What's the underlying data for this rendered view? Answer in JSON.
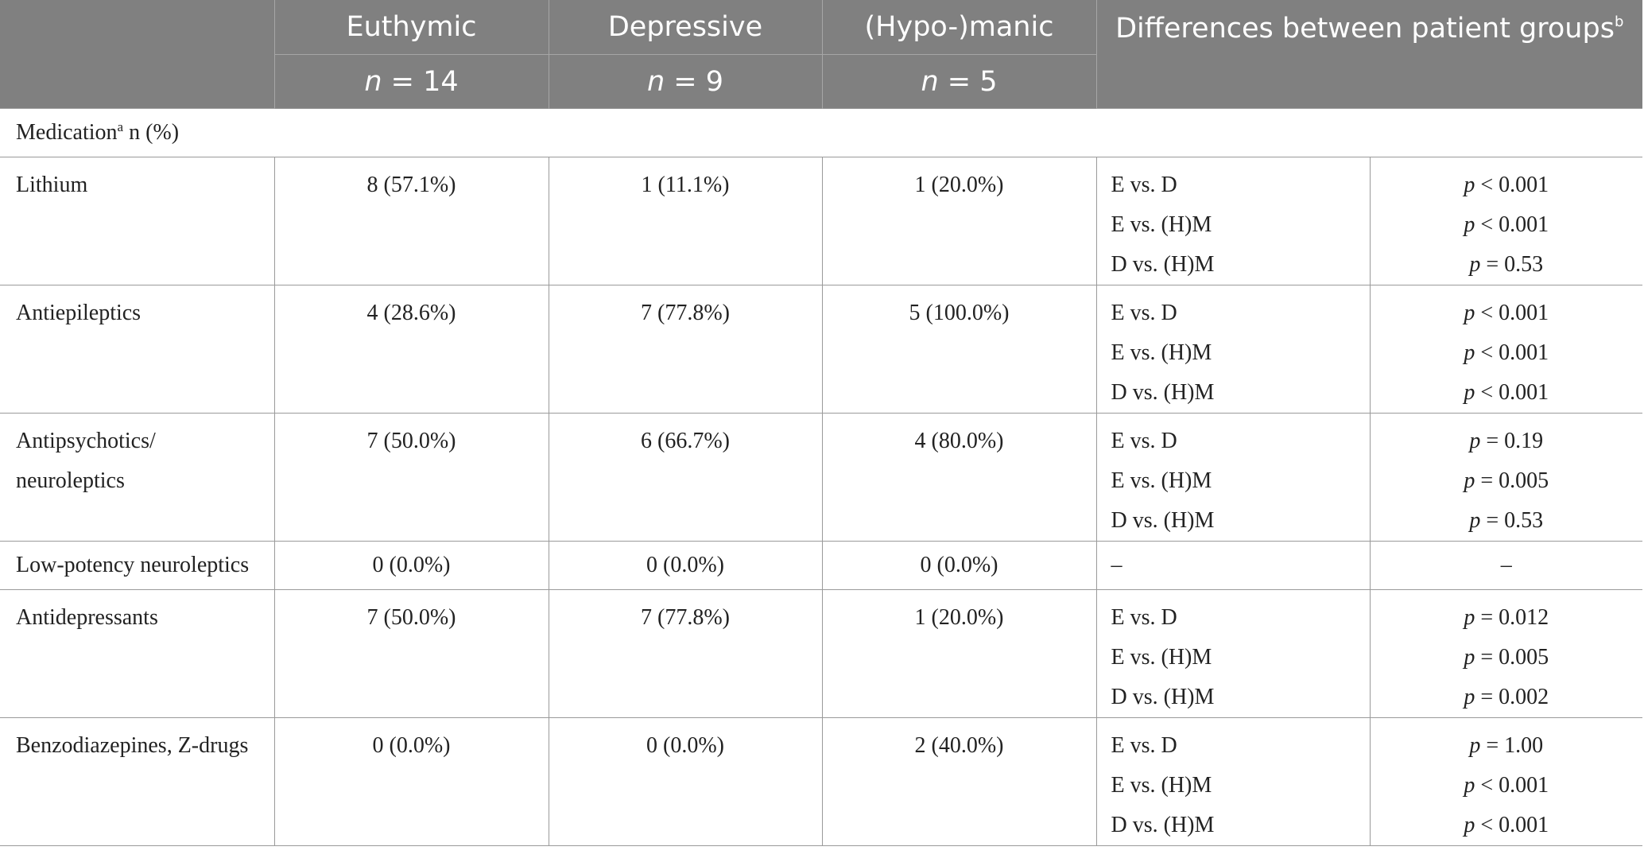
{
  "header": {
    "groups": [
      {
        "name": "Euthymic",
        "n_label": "n",
        "n_value": " = 14"
      },
      {
        "name": "Depressive",
        "n_label": "n",
        "n_value": " = 9"
      },
      {
        "name": "(Hypo-)manic",
        "n_label": "n",
        "n_value": " = 5"
      }
    ],
    "differences": "Differences between patient groups",
    "differences_sup": "b"
  },
  "section": {
    "label": "Medication",
    "label_sup": "a",
    "label_suffix": " n (%)"
  },
  "rows": [
    {
      "label_lines": [
        "Lithium"
      ],
      "values": [
        "8 (57.1%)",
        "1 (11.1%)",
        "1 (20.0%)"
      ],
      "comparisons": [
        "E vs. D",
        "E vs. (H)M",
        "D vs. (H)M"
      ],
      "pvalues": [
        [
          "p",
          " < 0.001"
        ],
        [
          "p",
          " < 0.001"
        ],
        [
          "p",
          " = 0.53"
        ]
      ]
    },
    {
      "label_lines": [
        "Antiepileptics"
      ],
      "values": [
        "4 (28.6%)",
        "7 (77.8%)",
        "5 (100.0%)"
      ],
      "comparisons": [
        "E vs. D",
        "E vs. (H)M",
        "D vs. (H)M"
      ],
      "pvalues": [
        [
          "p",
          " < 0.001"
        ],
        [
          "p",
          " < 0.001"
        ],
        [
          "p",
          " < 0.001"
        ]
      ]
    },
    {
      "label_lines": [
        "Antipsychotics/",
        "neuroleptics"
      ],
      "values": [
        "7 (50.0%)",
        "6 (66.7%)",
        "4 (80.0%)"
      ],
      "comparisons": [
        "E vs. D",
        "E vs. (H)M",
        "D vs. (H)M"
      ],
      "pvalues": [
        [
          "p",
          " = 0.19"
        ],
        [
          "p",
          " = 0.005"
        ],
        [
          "p",
          " = 0.53"
        ]
      ]
    },
    {
      "label_lines": [
        "Low-potency neuroleptics"
      ],
      "values": [
        "0 (0.0%)",
        "0 (0.0%)",
        "0 (0.0%)"
      ],
      "comparisons": [
        "–"
      ],
      "pvalues": [
        [
          "",
          "–"
        ]
      ]
    },
    {
      "label_lines": [
        "Antidepressants"
      ],
      "values": [
        "7 (50.0%)",
        "7 (77.8%)",
        "1 (20.0%)"
      ],
      "comparisons": [
        "E vs. D",
        "E vs. (H)M",
        "D vs. (H)M"
      ],
      "pvalues": [
        [
          "p",
          " = 0.012"
        ],
        [
          "p",
          " = 0.005"
        ],
        [
          "p",
          " = 0.002"
        ]
      ]
    },
    {
      "label_lines": [
        "Benzodiazepines, Z-drugs"
      ],
      "values": [
        "0 (0.0%)",
        "0 (0.0%)",
        "2 (40.0%)"
      ],
      "comparisons": [
        "E vs. D",
        "E vs. (H)M",
        "D vs. (H)M"
      ],
      "pvalues": [
        [
          "p",
          " = 1.00"
        ],
        [
          "p",
          " < 0.001"
        ],
        [
          "p",
          " < 0.001"
        ]
      ]
    }
  ]
}
